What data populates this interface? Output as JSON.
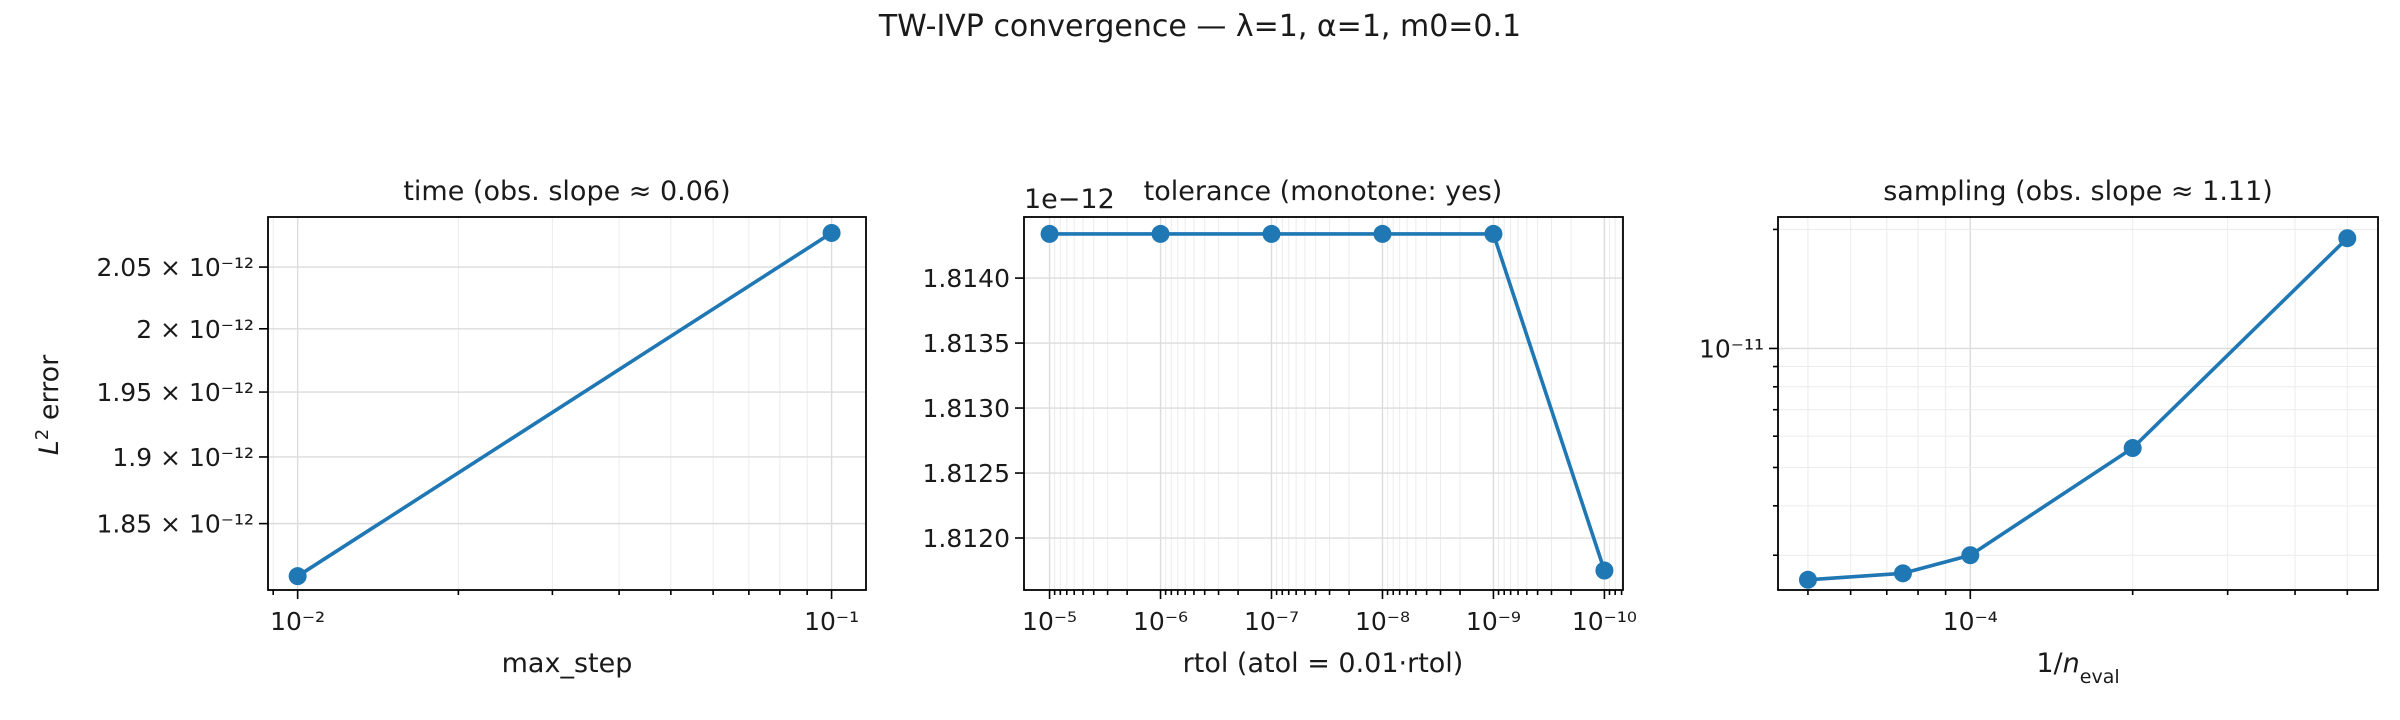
{
  "suptitle": "TW-IVP convergence — λ=1, α=1, m0=0.1",
  "series_color": "#1f77b4",
  "chart_data": [
    {
      "type": "line",
      "title": "time (obs. slope ≈ 0.06)",
      "xlabel": "max_step",
      "ylabel": "L² error",
      "xscale": "log",
      "yscale": "log",
      "x": [
        0.01,
        0.1
      ],
      "y": [
        1.8115e-12,
        2.0782e-12
      ],
      "xlim": [
        0.0088,
        0.116
      ],
      "ylim": [
        1.8015e-12,
        2.0915e-12
      ],
      "x_ticks": [
        {
          "v": 0.01,
          "label": "10⁻²"
        },
        {
          "v": 0.1,
          "label": "10⁻¹"
        }
      ],
      "y_ticks": [
        {
          "v": 1.85e-12,
          "label": "1.85 × 10⁻¹²"
        },
        {
          "v": 1.9e-12,
          "label": "1.9 × 10⁻¹²"
        },
        {
          "v": 1.95e-12,
          "label": "1.95 × 10⁻¹²"
        },
        {
          "v": 2e-12,
          "label": "2 × 10⁻¹²"
        },
        {
          "v": 2.05e-12,
          "label": "2.05 × 10⁻¹²"
        }
      ],
      "grid": true
    },
    {
      "type": "line",
      "title": "tolerance (monotone: yes)",
      "xlabel": "rtol (atol = 0.01·rtol)",
      "ylabel": "",
      "xscale": "log",
      "x_inverted": true,
      "yscale": "linear",
      "y_offset_label": "1e−12",
      "x": [
        1e-05,
        1e-06,
        1e-07,
        1e-08,
        1e-09,
        1e-10
      ],
      "y": [
        1.81434e-12,
        1.81434e-12,
        1.81434e-12,
        1.81434e-12,
        1.81434e-12,
        1.81175e-12
      ],
      "xlim": [
        1.7e-05,
        6.8e-11
      ],
      "ylim": [
        1.8116e-12,
        1.81447e-12
      ],
      "x_ticks": [
        {
          "v": 1e-05,
          "label": "10⁻⁵"
        },
        {
          "v": 1e-06,
          "label": "10⁻⁶"
        },
        {
          "v": 1e-07,
          "label": "10⁻⁷"
        },
        {
          "v": 1e-08,
          "label": "10⁻⁸"
        },
        {
          "v": 1e-09,
          "label": "10⁻⁹"
        },
        {
          "v": 1e-10,
          "label": "10⁻¹⁰"
        }
      ],
      "y_ticks": [
        {
          "v": 1.812e-12,
          "label": "1.8120"
        },
        {
          "v": 1.8125e-12,
          "label": "1.8125"
        },
        {
          "v": 1.813e-12,
          "label": "1.8130"
        },
        {
          "v": 1.8135e-12,
          "label": "1.8135"
        },
        {
          "v": 1.814e-12,
          "label": "1.8140"
        }
      ],
      "grid": true
    },
    {
      "type": "line",
      "title": "sampling (obs. slope ≈ 1.11)",
      "xlabel": "1/n_eval",
      "ylabel": "",
      "xscale": "log",
      "yscale": "log",
      "x": [
        5e-05,
        7.5e-05,
        0.0001,
        0.0002,
        0.0005
      ],
      "y": [
        2.6e-12,
        2.7e-12,
        3e-12,
        5.6e-12,
        1.9e-11
      ],
      "xlim": [
        4.4e-05,
        0.00057
      ],
      "ylim": [
        2.45e-12,
        2.15e-11
      ],
      "x_ticks": [
        {
          "v": 0.0001,
          "label": "10⁻⁴"
        }
      ],
      "y_ticks": [
        {
          "v": 1e-11,
          "label": "10⁻¹¹"
        }
      ],
      "grid": true
    }
  ]
}
